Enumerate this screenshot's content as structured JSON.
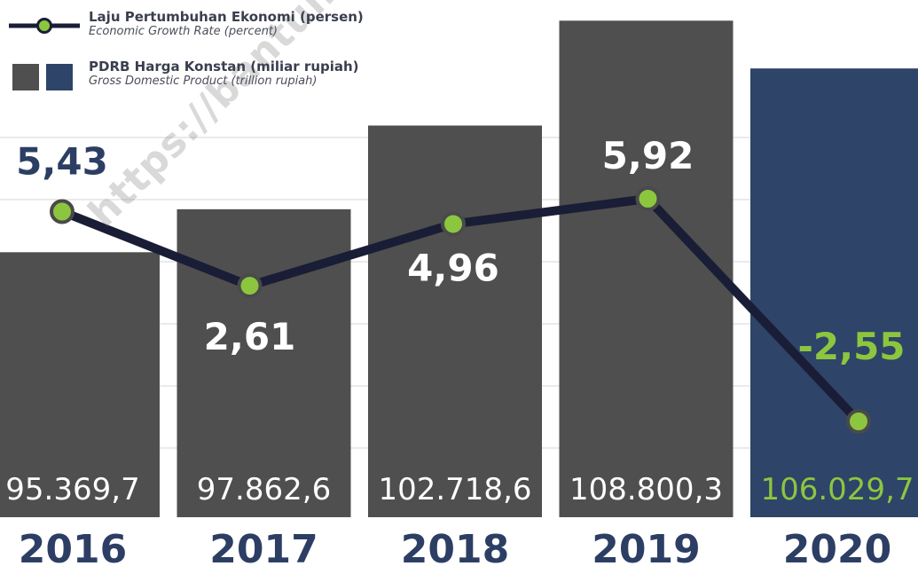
{
  "chart_data": {
    "type": "bar+line",
    "categories": [
      "2016",
      "2017",
      "2018",
      "2019",
      "2020"
    ],
    "series": [
      {
        "name": "PDRB Harga Konstan (miliar rupiah)",
        "name_en": "Gross Domestic Product (trillion rupiah)",
        "type": "bar",
        "values": [
          95369.7,
          97862.6,
          102718.6,
          108800.3,
          106029.7
        ],
        "labels": [
          "95.369,7",
          "97.862,6",
          "102.718,6",
          "108.800,3",
          "106.029,7"
        ],
        "colors": [
          "#4f4f4f",
          "#4f4f4f",
          "#4f4f4f",
          "#4f4f4f",
          "#2e4468"
        ]
      },
      {
        "name": "Laju Pertumbuhan Ekonomi (persen)",
        "name_en": "Economic Growth Rate (percent)",
        "type": "line",
        "values": [
          5.43,
          2.61,
          4.96,
          5.92,
          -2.55
        ],
        "labels": [
          "5,43",
          "2,61",
          "4,96",
          "5,92",
          "-2,55"
        ]
      }
    ],
    "bar_ylim": [
      80000,
      110000
    ],
    "line_ylim": [
      -5,
      9
    ],
    "grid": true,
    "legend_position": "top-left",
    "watermark": "https://bantulkab.bps.go.id"
  },
  "colors": {
    "bar": "#4f4f4f",
    "bar_highlight": "#2e4468",
    "line": "#1a1d36",
    "marker": "#8cc63f",
    "year_label": "#2c3e63",
    "value_label_default": "#ffffff",
    "value_label_highlight": "#8cc63f",
    "growth_label_above": "#2c3e63",
    "gridline": "#e3e3e3"
  }
}
